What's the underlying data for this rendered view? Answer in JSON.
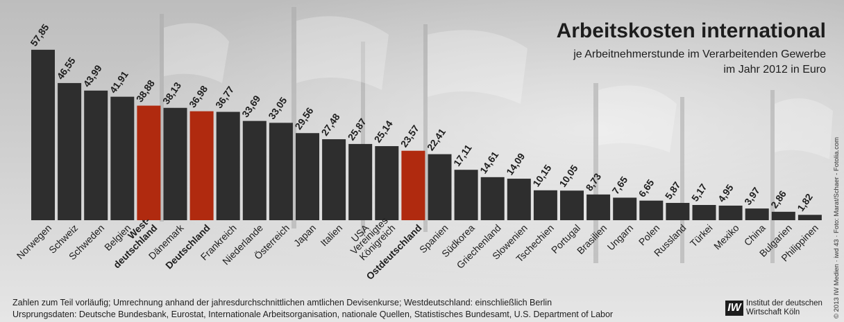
{
  "chart_data": {
    "type": "bar",
    "title": "Arbeitskosten international",
    "subtitle_lines": [
      "je Arbeitnehmerstunde im Verarbeitenden Gewerbe",
      "im Jahr 2012 in Euro"
    ],
    "categories": [
      "Norwegen",
      "Schweiz",
      "Schweden",
      "Belgien",
      "West-\ndeutschland",
      "Dänemark",
      "Deutschland",
      "Frankreich",
      "Niederlande",
      "Österreich",
      "Japan",
      "Italien",
      "USA",
      "Vereinigtes\nKönigreich",
      "Ostdeutschland",
      "Spanien",
      "Südkorea",
      "Griechenland",
      "Slowenien",
      "Tschechien",
      "Portugal",
      "Brasilien",
      "Ungarn",
      "Polen",
      "Russland",
      "Türkei",
      "Mexiko",
      "China",
      "Bulgarien",
      "Philippinen"
    ],
    "values": [
      57.85,
      46.55,
      43.99,
      41.91,
      38.88,
      38.13,
      36.98,
      36.77,
      33.69,
      33.05,
      29.56,
      27.48,
      25.87,
      25.14,
      23.57,
      22.41,
      17.11,
      14.61,
      14.09,
      10.15,
      10.05,
      8.73,
      7.65,
      6.65,
      5.87,
      5.17,
      4.95,
      3.97,
      2.86,
      1.82
    ],
    "value_labels": [
      "57,85",
      "46,55",
      "43,99",
      "41,91",
      "38,88",
      "38,13",
      "36,98",
      "36,77",
      "33,69",
      "33,05",
      "29,56",
      "27,48",
      "25,87",
      "25,14",
      "23,57",
      "22,41",
      "17,11",
      "14,61",
      "14,09",
      "10,15",
      "10,05",
      "8,73",
      "7,65",
      "6,65",
      "5,87",
      "5,17",
      "4,95",
      "3,97",
      "2,86",
      "1,82"
    ],
    "highlighted": [
      "West-\ndeutschland",
      "Deutschland",
      "Ostdeutschland"
    ],
    "ylim": [
      0,
      60
    ],
    "grid": false,
    "legend": "none"
  },
  "colors": {
    "bar": "#2e2e2e",
    "highlight": "#b02a0f",
    "text": "#1d1d1d"
  },
  "notes": [
    "Zahlen zum Teil vorläufig; Umrechnung anhand der jahresdurchschnittlichen amtlichen Devisenkurse; Westdeutschland: einschließlich Berlin",
    "Ursprungsdaten: Deutsche Bundesbank, Eurostat, Internationale Arbeitsorganisation, nationale Quellen, Statistisches Bundesamt, U.S. Department of Labor"
  ],
  "logo": {
    "mark": "IW",
    "line1": "Institut der deutschen",
    "line2": "Wirtschaft Köln"
  },
  "credit": "© 2013 IW Medien · iwd 43 · Foto: Marat/Schaer - Fotolia.com"
}
